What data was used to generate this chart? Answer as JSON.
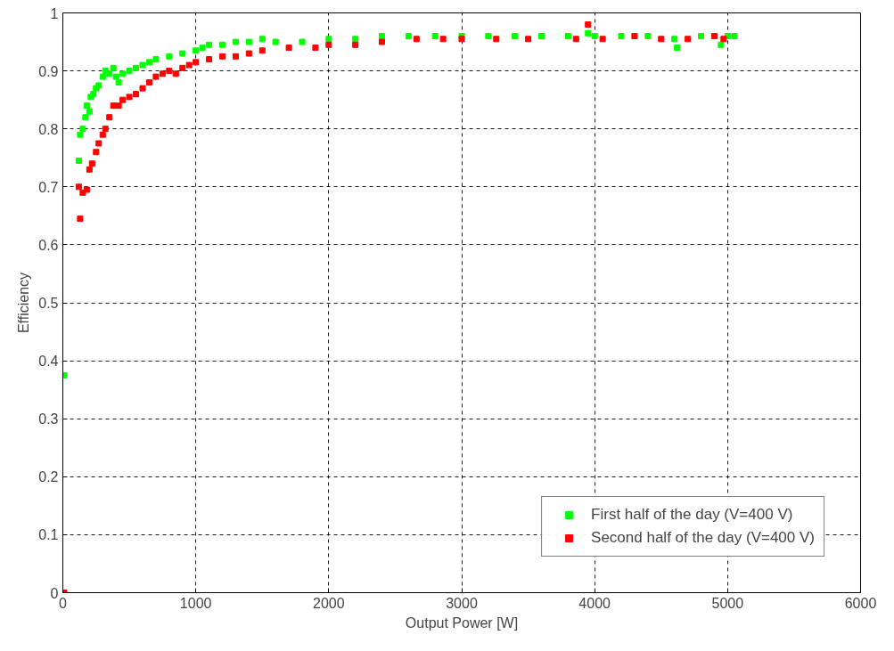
{
  "chart_data": {
    "type": "scatter",
    "xlabel": "Output Power [W]",
    "ylabel": "Efficiency",
    "xlim": [
      0,
      6000
    ],
    "ylim": [
      0,
      1
    ],
    "xticks": [
      0,
      1000,
      2000,
      3000,
      4000,
      5000,
      6000
    ],
    "yticks": [
      0,
      0.1,
      0.2,
      0.3,
      0.4,
      0.5,
      0.6,
      0.7,
      0.8,
      0.9,
      1
    ],
    "grid": true,
    "legend": "bottom right",
    "marker": "square",
    "series": [
      {
        "name": "First half of the day (V=400 V)",
        "color": "#00ff00",
        "x": [
          10,
          120,
          130,
          150,
          170,
          180,
          200,
          210,
          230,
          250,
          270,
          300,
          320,
          350,
          380,
          400,
          420,
          450,
          500,
          550,
          600,
          650,
          700,
          800,
          900,
          1000,
          1050,
          1100,
          1200,
          1300,
          1400,
          1500,
          1600,
          1800,
          2000,
          2200,
          2400,
          2600,
          2800,
          3000,
          3200,
          3400,
          3600,
          3800,
          3950,
          4000,
          4200,
          4400,
          4600,
          4620,
          4800,
          4950,
          5000,
          5050
        ],
        "values": [
          0.375,
          0.745,
          0.79,
          0.8,
          0.82,
          0.84,
          0.83,
          0.855,
          0.86,
          0.87,
          0.875,
          0.89,
          0.9,
          0.895,
          0.905,
          0.89,
          0.88,
          0.895,
          0.9,
          0.905,
          0.91,
          0.915,
          0.92,
          0.925,
          0.93,
          0.935,
          0.94,
          0.945,
          0.945,
          0.95,
          0.95,
          0.955,
          0.95,
          0.95,
          0.955,
          0.955,
          0.96,
          0.96,
          0.96,
          0.96,
          0.96,
          0.96,
          0.96,
          0.96,
          0.965,
          0.96,
          0.96,
          0.96,
          0.955,
          0.94,
          0.96,
          0.945,
          0.96,
          0.96
        ]
      },
      {
        "name": "Second half of the day (V=400 V)",
        "color": "#ff0000",
        "x": [
          10,
          130,
          120,
          150,
          180,
          200,
          220,
          250,
          270,
          300,
          320,
          350,
          380,
          420,
          450,
          500,
          550,
          600,
          650,
          700,
          750,
          800,
          850,
          900,
          950,
          1000,
          1100,
          1200,
          1300,
          1400,
          1500,
          1700,
          1900,
          2000,
          2200,
          2400,
          2660,
          2860,
          3000,
          3260,
          3500,
          3860,
          3950,
          4060,
          4300,
          4500,
          4700,
          4900,
          4970
        ],
        "values": [
          0.0,
          0.645,
          0.7,
          0.69,
          0.695,
          0.73,
          0.74,
          0.76,
          0.775,
          0.79,
          0.8,
          0.82,
          0.84,
          0.84,
          0.85,
          0.855,
          0.86,
          0.87,
          0.88,
          0.89,
          0.895,
          0.9,
          0.895,
          0.905,
          0.91,
          0.915,
          0.92,
          0.925,
          0.925,
          0.93,
          0.935,
          0.94,
          0.94,
          0.945,
          0.945,
          0.95,
          0.955,
          0.955,
          0.955,
          0.955,
          0.955,
          0.955,
          0.98,
          0.955,
          0.96,
          0.955,
          0.955,
          0.96,
          0.955
        ]
      }
    ]
  }
}
